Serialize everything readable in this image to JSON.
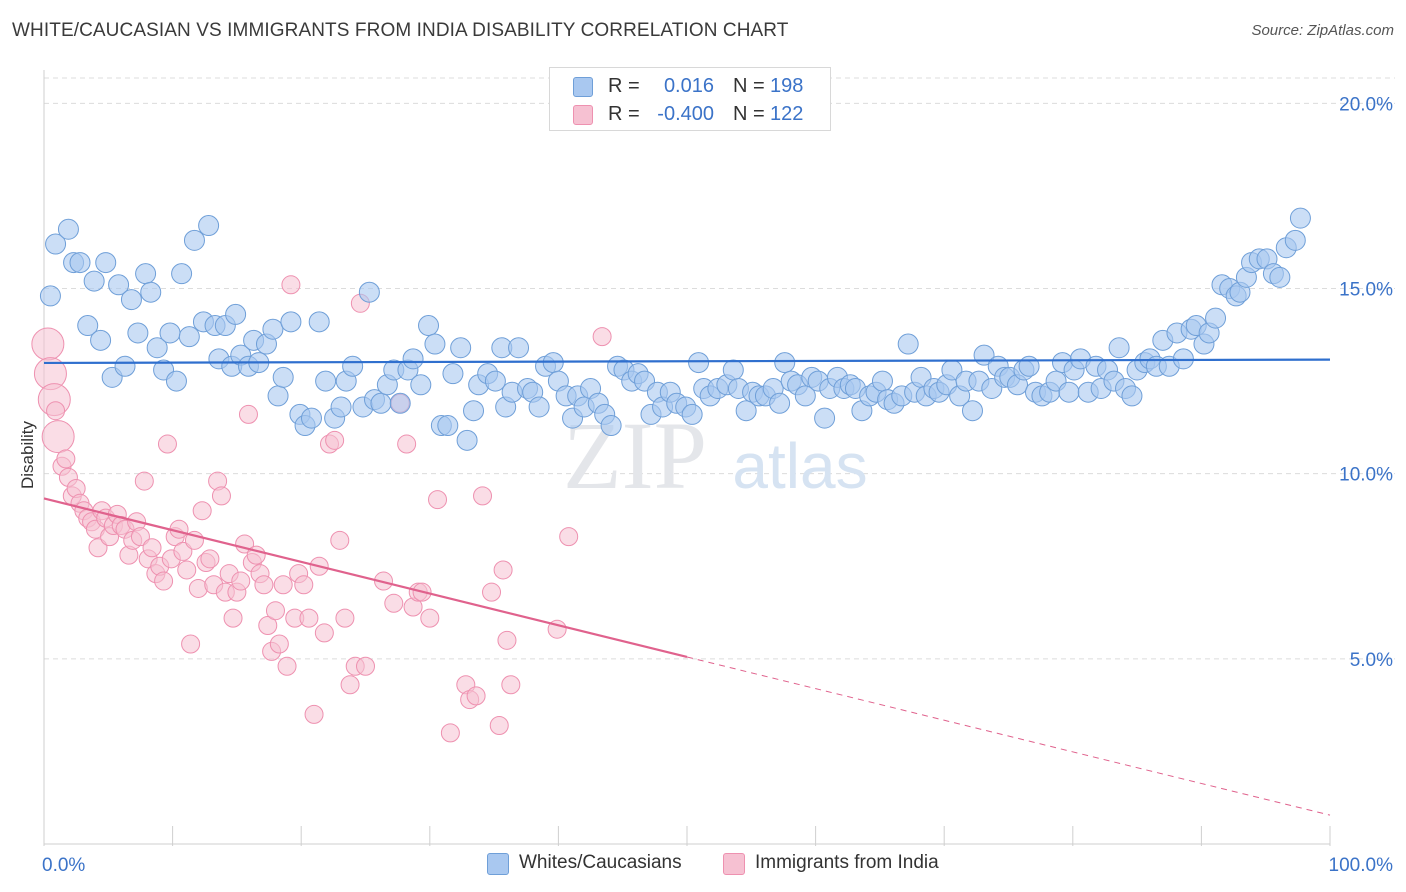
{
  "title": "WHITE/CAUCASIAN VS IMMIGRANTS FROM INDIA DISABILITY CORRELATION CHART",
  "source": "Source: ZipAtlas.com",
  "watermark": "ZIPatlas",
  "colors": {
    "blue_fill": "#a9c8f0",
    "blue_stroke": "#6f9fd8",
    "blue_line": "#2f6fce",
    "pink_fill": "#f6c1d2",
    "pink_stroke": "#ee91b0",
    "pink_line": "#e0628d",
    "axis_label": "#3b73c8",
    "grid": "#dcdcdc"
  },
  "legend_top": [
    {
      "r_label": "R =",
      "r_value": "0.016",
      "n_label": "N =",
      "n_value": "198"
    },
    {
      "r_label": "R =",
      "r_value": "-0.400",
      "n_label": "N =",
      "n_value": "122"
    }
  ],
  "chart_data": {
    "type": "scatter",
    "ylabel": "Disability",
    "xlabel": "",
    "x_tick_labels": [
      "0.0%",
      "100.0%"
    ],
    "y_tick_labels": [
      "5.0%",
      "10.0%",
      "15.0%",
      "20.0%"
    ],
    "y_ticks": [
      5,
      10,
      15,
      20
    ],
    "xlim": [
      0,
      100
    ],
    "ylim": [
      0,
      20.9
    ],
    "grid": true,
    "legend_position": "bottom",
    "series": [
      {
        "name": "Whites/Caucasians",
        "color": "#a9c8f0",
        "trend": {
          "x": [
            0,
            100
          ],
          "y": [
            12.99,
            13.08
          ],
          "dashed_to": null
        },
        "points": [
          [
            0.5,
            14.8
          ],
          [
            0.9,
            16.2
          ],
          [
            1.9,
            16.6
          ],
          [
            2.3,
            15.7
          ],
          [
            2.8,
            15.7
          ],
          [
            3.4,
            14.0
          ],
          [
            3.9,
            15.2
          ],
          [
            4.4,
            13.6
          ],
          [
            4.8,
            15.7
          ],
          [
            5.3,
            12.6
          ],
          [
            5.8,
            15.1
          ],
          [
            6.3,
            12.9
          ],
          [
            6.8,
            14.7
          ],
          [
            7.3,
            13.8
          ],
          [
            7.9,
            15.4
          ],
          [
            8.3,
            14.9
          ],
          [
            8.8,
            13.4
          ],
          [
            9.3,
            12.8
          ],
          [
            9.8,
            13.8
          ],
          [
            10.3,
            12.5
          ],
          [
            10.7,
            15.4
          ],
          [
            11.3,
            13.7
          ],
          [
            11.7,
            16.3
          ],
          [
            12.4,
            14.1
          ],
          [
            12.8,
            16.7
          ],
          [
            13.3,
            14.0
          ],
          [
            13.6,
            13.1
          ],
          [
            14.1,
            14.0
          ],
          [
            14.6,
            12.9
          ],
          [
            14.9,
            14.3
          ],
          [
            15.3,
            13.2
          ],
          [
            15.9,
            12.9
          ],
          [
            16.3,
            13.6
          ],
          [
            16.7,
            13.0
          ],
          [
            17.3,
            13.5
          ],
          [
            17.8,
            13.9
          ],
          [
            18.2,
            12.1
          ],
          [
            18.6,
            12.6
          ],
          [
            19.2,
            14.1
          ],
          [
            19.9,
            11.6
          ],
          [
            20.3,
            11.3
          ],
          [
            20.8,
            11.5
          ],
          [
            21.4,
            14.1
          ],
          [
            21.9,
            12.5
          ],
          [
            22.6,
            11.5
          ],
          [
            23.1,
            11.8
          ],
          [
            23.5,
            12.5
          ],
          [
            24.0,
            12.9
          ],
          [
            24.8,
            11.8
          ],
          [
            25.3,
            14.9
          ],
          [
            25.7,
            12.0
          ],
          [
            26.2,
            11.9
          ],
          [
            26.7,
            12.4
          ],
          [
            27.2,
            12.8
          ],
          [
            27.7,
            11.9
          ],
          [
            28.3,
            12.8
          ],
          [
            28.7,
            13.1
          ],
          [
            29.3,
            12.4
          ],
          [
            29.9,
            14.0
          ],
          [
            30.4,
            13.5
          ],
          [
            30.9,
            11.3
          ],
          [
            31.4,
            11.3
          ],
          [
            31.8,
            12.7
          ],
          [
            32.4,
            13.4
          ],
          [
            32.9,
            10.9
          ],
          [
            33.4,
            11.7
          ],
          [
            33.8,
            12.4
          ],
          [
            34.5,
            12.7
          ],
          [
            35.1,
            12.5
          ],
          [
            35.6,
            13.4
          ],
          [
            35.9,
            11.8
          ],
          [
            36.4,
            12.2
          ],
          [
            36.9,
            13.4
          ],
          [
            37.6,
            12.3
          ],
          [
            38.0,
            12.2
          ],
          [
            38.5,
            11.8
          ],
          [
            39.0,
            12.9
          ],
          [
            39.6,
            13.0
          ],
          [
            40.0,
            12.5
          ],
          [
            40.6,
            12.1
          ],
          [
            41.1,
            11.5
          ],
          [
            41.5,
            12.1
          ],
          [
            42.0,
            11.8
          ],
          [
            42.5,
            12.3
          ],
          [
            43.1,
            11.9
          ],
          [
            43.6,
            11.6
          ],
          [
            44.1,
            11.3
          ],
          [
            44.6,
            12.9
          ],
          [
            45.1,
            12.8
          ],
          [
            45.7,
            12.5
          ],
          [
            46.2,
            12.7
          ],
          [
            46.7,
            12.5
          ],
          [
            47.2,
            11.6
          ],
          [
            47.7,
            12.2
          ],
          [
            48.1,
            11.8
          ],
          [
            48.7,
            12.2
          ],
          [
            49.2,
            11.9
          ],
          [
            49.9,
            11.8
          ],
          [
            50.4,
            11.6
          ],
          [
            50.9,
            13.0
          ],
          [
            51.3,
            12.3
          ],
          [
            51.8,
            12.1
          ],
          [
            52.4,
            12.3
          ],
          [
            53.1,
            12.4
          ],
          [
            53.6,
            12.8
          ],
          [
            54.0,
            12.3
          ],
          [
            54.6,
            11.7
          ],
          [
            55.1,
            12.2
          ],
          [
            55.6,
            12.1
          ],
          [
            56.1,
            12.1
          ],
          [
            56.7,
            12.3
          ],
          [
            57.2,
            11.9
          ],
          [
            57.6,
            13.0
          ],
          [
            58.1,
            12.5
          ],
          [
            58.6,
            12.4
          ],
          [
            59.2,
            12.1
          ],
          [
            59.7,
            12.6
          ],
          [
            60.2,
            12.5
          ],
          [
            60.7,
            11.5
          ],
          [
            61.1,
            12.3
          ],
          [
            61.7,
            12.6
          ],
          [
            62.2,
            12.3
          ],
          [
            62.7,
            12.4
          ],
          [
            63.1,
            12.3
          ],
          [
            63.6,
            11.7
          ],
          [
            64.2,
            12.1
          ],
          [
            64.7,
            12.2
          ],
          [
            65.2,
            12.5
          ],
          [
            65.6,
            12.0
          ],
          [
            66.1,
            11.9
          ],
          [
            66.7,
            12.1
          ],
          [
            67.2,
            13.5
          ],
          [
            67.7,
            12.2
          ],
          [
            68.2,
            12.6
          ],
          [
            68.6,
            12.1
          ],
          [
            69.2,
            12.3
          ],
          [
            69.6,
            12.2
          ],
          [
            70.2,
            12.4
          ],
          [
            70.6,
            12.8
          ],
          [
            71.2,
            12.1
          ],
          [
            71.7,
            12.5
          ],
          [
            72.2,
            11.7
          ],
          [
            72.7,
            12.5
          ],
          [
            73.1,
            13.2
          ],
          [
            73.7,
            12.3
          ],
          [
            74.2,
            12.9
          ],
          [
            74.7,
            12.6
          ],
          [
            75.1,
            12.6
          ],
          [
            75.7,
            12.4
          ],
          [
            76.2,
            12.8
          ],
          [
            76.6,
            12.9
          ],
          [
            77.1,
            12.2
          ],
          [
            77.6,
            12.1
          ],
          [
            78.2,
            12.2
          ],
          [
            78.7,
            12.5
          ],
          [
            79.2,
            13.0
          ],
          [
            79.7,
            12.2
          ],
          [
            80.1,
            12.8
          ],
          [
            80.6,
            13.1
          ],
          [
            81.2,
            12.2
          ],
          [
            81.8,
            12.9
          ],
          [
            82.2,
            12.3
          ],
          [
            82.7,
            12.8
          ],
          [
            83.2,
            12.5
          ],
          [
            83.6,
            13.4
          ],
          [
            84.1,
            12.3
          ],
          [
            84.6,
            12.1
          ],
          [
            85.0,
            12.8
          ],
          [
            85.6,
            13.0
          ],
          [
            86.0,
            13.1
          ],
          [
            86.5,
            12.9
          ],
          [
            87.0,
            13.6
          ],
          [
            87.5,
            12.9
          ],
          [
            88.1,
            13.8
          ],
          [
            88.6,
            13.1
          ],
          [
            89.2,
            13.9
          ],
          [
            89.6,
            14.0
          ],
          [
            90.2,
            13.5
          ],
          [
            90.6,
            13.8
          ],
          [
            91.1,
            14.2
          ],
          [
            91.6,
            15.1
          ],
          [
            92.2,
            15.0
          ],
          [
            92.7,
            14.8
          ],
          [
            93.0,
            14.9
          ],
          [
            93.5,
            15.3
          ],
          [
            93.9,
            15.7
          ],
          [
            94.5,
            15.8
          ],
          [
            95.1,
            15.8
          ],
          [
            95.6,
            15.4
          ],
          [
            96.1,
            15.3
          ],
          [
            96.6,
            16.1
          ],
          [
            97.3,
            16.3
          ],
          [
            97.7,
            16.9
          ]
        ]
      },
      {
        "name": "Immigrants from India",
        "color": "#f6c1d2",
        "trend": {
          "x": [
            0,
            50
          ],
          "y": [
            9.33,
            5.05
          ],
          "dashed_to": [
            100,
            0.78
          ]
        },
        "points": [
          [
            0.3,
            13.5
          ],
          [
            0.5,
            12.7
          ],
          [
            0.8,
            12.0
          ],
          [
            0.9,
            11.7
          ],
          [
            1.1,
            11.0
          ],
          [
            1.4,
            10.2
          ],
          [
            1.7,
            10.4
          ],
          [
            1.9,
            9.9
          ],
          [
            2.2,
            9.4
          ],
          [
            2.5,
            9.6
          ],
          [
            2.8,
            9.2
          ],
          [
            3.1,
            9.0
          ],
          [
            3.4,
            8.8
          ],
          [
            3.7,
            8.7
          ],
          [
            4.0,
            8.5
          ],
          [
            4.2,
            8.0
          ],
          [
            4.5,
            9.0
          ],
          [
            4.8,
            8.8
          ],
          [
            5.1,
            8.3
          ],
          [
            5.4,
            8.6
          ],
          [
            5.7,
            8.9
          ],
          [
            6.0,
            8.6
          ],
          [
            6.3,
            8.5
          ],
          [
            6.6,
            7.8
          ],
          [
            6.9,
            8.2
          ],
          [
            7.2,
            8.7
          ],
          [
            7.5,
            8.3
          ],
          [
            7.8,
            9.8
          ],
          [
            8.1,
            7.7
          ],
          [
            8.4,
            8.0
          ],
          [
            8.7,
            7.3
          ],
          [
            9.0,
            7.5
          ],
          [
            9.3,
            7.1
          ],
          [
            9.6,
            10.8
          ],
          [
            9.9,
            7.7
          ],
          [
            10.2,
            8.3
          ],
          [
            10.5,
            8.5
          ],
          [
            10.8,
            7.9
          ],
          [
            11.1,
            7.4
          ],
          [
            11.4,
            5.4
          ],
          [
            11.7,
            8.2
          ],
          [
            12.0,
            6.9
          ],
          [
            12.3,
            9.0
          ],
          [
            12.6,
            7.6
          ],
          [
            12.9,
            7.7
          ],
          [
            13.2,
            7.0
          ],
          [
            13.5,
            9.8
          ],
          [
            13.8,
            9.4
          ],
          [
            14.1,
            6.8
          ],
          [
            14.4,
            7.3
          ],
          [
            14.7,
            6.1
          ],
          [
            15.0,
            6.8
          ],
          [
            15.3,
            7.1
          ],
          [
            15.6,
            8.1
          ],
          [
            15.9,
            11.6
          ],
          [
            16.2,
            7.6
          ],
          [
            16.5,
            7.8
          ],
          [
            16.8,
            7.3
          ],
          [
            17.1,
            7.0
          ],
          [
            17.4,
            5.9
          ],
          [
            17.7,
            5.2
          ],
          [
            18.0,
            6.3
          ],
          [
            18.3,
            5.4
          ],
          [
            18.6,
            7.0
          ],
          [
            18.9,
            4.8
          ],
          [
            19.2,
            15.1
          ],
          [
            19.5,
            6.1
          ],
          [
            19.8,
            7.3
          ],
          [
            20.2,
            7.0
          ],
          [
            20.6,
            6.1
          ],
          [
            21.0,
            3.5
          ],
          [
            21.4,
            7.5
          ],
          [
            21.8,
            5.7
          ],
          [
            22.2,
            10.8
          ],
          [
            22.6,
            10.9
          ],
          [
            23.0,
            8.2
          ],
          [
            23.4,
            6.1
          ],
          [
            23.8,
            4.3
          ],
          [
            24.2,
            4.8
          ],
          [
            24.6,
            14.6
          ],
          [
            25.0,
            4.8
          ],
          [
            26.4,
            7.1
          ],
          [
            27.2,
            6.5
          ],
          [
            27.7,
            11.9
          ],
          [
            28.2,
            10.8
          ],
          [
            28.7,
            6.4
          ],
          [
            29.1,
            6.8
          ],
          [
            29.4,
            6.8
          ],
          [
            30.0,
            6.1
          ],
          [
            30.6,
            9.3
          ],
          [
            31.6,
            3.0
          ],
          [
            32.8,
            4.3
          ],
          [
            33.1,
            3.9
          ],
          [
            33.6,
            4.0
          ],
          [
            34.1,
            9.4
          ],
          [
            34.8,
            6.8
          ],
          [
            35.4,
            3.2
          ],
          [
            35.7,
            7.4
          ],
          [
            36.0,
            5.5
          ],
          [
            36.3,
            4.3
          ],
          [
            39.9,
            5.8
          ],
          [
            40.8,
            8.3
          ],
          [
            43.4,
            13.7
          ]
        ],
        "large_points": [
          [
            0.3,
            13.5
          ],
          [
            0.5,
            12.7
          ],
          [
            0.8,
            12.0
          ],
          [
            1.1,
            11.0
          ]
        ]
      }
    ]
  }
}
